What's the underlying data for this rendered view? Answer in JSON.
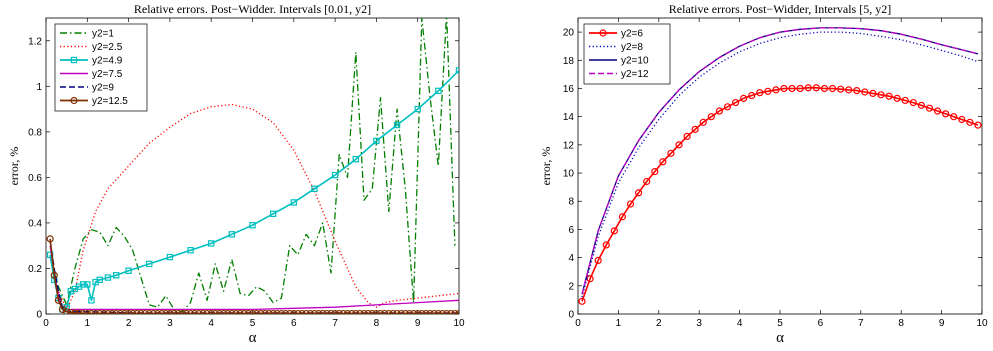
{
  "chart_data": [
    {
      "type": "line",
      "title": "Relative errors. Post−Widder. Intervals [0.01, y2]",
      "xlabel": "α",
      "ylabel": "error, %",
      "xlim": [
        0,
        10
      ],
      "ylim": [
        0,
        1.3
      ],
      "xticks": [
        "0",
        "1",
        "2",
        "3",
        "4",
        "5",
        "6",
        "7",
        "8",
        "9",
        "10"
      ],
      "yticks": [
        "0",
        "0.2",
        "0.4",
        "0.6",
        "0.8",
        "1",
        "1.2"
      ],
      "xtick_values": [
        0,
        1,
        2,
        3,
        4,
        5,
        6,
        7,
        8,
        9,
        10
      ],
      "ytick_values": [
        0,
        0.2,
        0.4,
        0.6,
        0.8,
        1,
        1.2
      ],
      "grid": false,
      "legend_position": "top-left",
      "series": [
        {
          "name": "y2=1",
          "color": "#007f00",
          "dash": "dashdot",
          "marker": "none",
          "x": [
            0.1,
            0.3,
            0.5,
            0.7,
            0.9,
            1.1,
            1.3,
            1.5,
            1.7,
            1.9,
            2.1,
            2.3,
            2.5,
            2.7,
            2.9,
            3.1,
            3.3,
            3.5,
            3.7,
            3.9,
            4.1,
            4.3,
            4.5,
            4.7,
            4.9,
            5.1,
            5.3,
            5.5,
            5.7,
            5.9,
            6.1,
            6.3,
            6.5,
            6.7,
            6.9,
            7.1,
            7.3,
            7.5,
            7.7,
            7.9,
            8.1,
            8.3,
            8.5,
            8.7,
            8.9,
            9.1,
            9.3,
            9.5,
            9.7,
            9.9
          ],
          "y": [
            0.25,
            0.12,
            0.04,
            0.2,
            0.33,
            0.37,
            0.36,
            0.3,
            0.38,
            0.34,
            0.28,
            0.16,
            0.04,
            0.03,
            0.08,
            0.02,
            0.01,
            0.05,
            0.18,
            0.06,
            0.22,
            0.1,
            0.24,
            0.09,
            0.08,
            0.12,
            0.1,
            0.05,
            0.07,
            0.3,
            0.26,
            0.35,
            0.3,
            0.4,
            0.18,
            0.7,
            0.6,
            1.15,
            0.5,
            0.55,
            0.95,
            0.45,
            0.9,
            0.55,
            0.05,
            1.3,
            0.95,
            0.65,
            1.32,
            0.3
          ]
        },
        {
          "name": "y2=2.5",
          "color": "#ff0000",
          "dash": "dotted",
          "marker": "none",
          "x": [
            0.1,
            0.3,
            0.5,
            0.7,
            0.9,
            1.2,
            1.5,
            2,
            2.5,
            3,
            3.5,
            4,
            4.5,
            5,
            5.5,
            6,
            6.5,
            7,
            7.5,
            7.8,
            8,
            8.2,
            8.5,
            9,
            9.5,
            10
          ],
          "y": [
            0.25,
            0.1,
            0.02,
            0.1,
            0.28,
            0.45,
            0.55,
            0.65,
            0.75,
            0.82,
            0.88,
            0.91,
            0.92,
            0.9,
            0.84,
            0.72,
            0.54,
            0.32,
            0.12,
            0.05,
            0.03,
            0.05,
            0.06,
            0.07,
            0.08,
            0.09
          ]
        },
        {
          "name": "y2=4.9",
          "color": "#00bfbf",
          "dash": "solid",
          "marker": "square",
          "x": [
            0.1,
            0.2,
            0.3,
            0.4,
            0.5,
            0.6,
            0.7,
            0.8,
            0.9,
            1,
            1.1,
            1.2,
            1.3,
            1.5,
            1.7,
            2,
            2.5,
            3,
            3.5,
            4,
            4.5,
            5,
            5.5,
            6,
            6.5,
            7,
            7.5,
            8,
            8.5,
            9,
            9.5,
            10
          ],
          "y": [
            0.26,
            0.15,
            0.07,
            0.02,
            0.03,
            0.1,
            0.11,
            0.12,
            0.13,
            0.13,
            0.06,
            0.14,
            0.15,
            0.16,
            0.17,
            0.19,
            0.22,
            0.25,
            0.28,
            0.31,
            0.35,
            0.39,
            0.44,
            0.49,
            0.55,
            0.61,
            0.68,
            0.76,
            0.83,
            0.9,
            0.98,
            1.07
          ]
        },
        {
          "name": "y2=7.5",
          "color": "#bf00bf",
          "dash": "solid",
          "marker": "none",
          "x": [
            0.1,
            0.2,
            0.3,
            0.4,
            0.5,
            0.6,
            1,
            2,
            3,
            4,
            5,
            6,
            7,
            8,
            9,
            10
          ],
          "y": [
            0.3,
            0.18,
            0.08,
            0.02,
            0.01,
            0.02,
            0.02,
            0.02,
            0.02,
            0.02,
            0.02,
            0.025,
            0.03,
            0.04,
            0.05,
            0.06
          ]
        },
        {
          "name": "y2=9",
          "color": "#00007f",
          "dash": "dashed",
          "marker": "none",
          "x": [
            0.1,
            0.2,
            0.3,
            0.4,
            0.5,
            0.6,
            1,
            2,
            3,
            4,
            5,
            6,
            7,
            8,
            9,
            10
          ],
          "y": [
            0.32,
            0.2,
            0.1,
            0.03,
            0.01,
            0.01,
            0.01,
            0.005,
            0.005,
            0.005,
            0.005,
            0.005,
            0.005,
            0.005,
            0.005,
            0.005
          ]
        },
        {
          "name": "y2=12.5",
          "color": "#7f2f00",
          "dash": "solid",
          "marker": "circle",
          "x": [
            0.1,
            0.2,
            0.3,
            0.4,
            0.5,
            0.6,
            0.7,
            0.8,
            0.9,
            1,
            1.1,
            1.2,
            1.3,
            1.4,
            1.5,
            1.6,
            1.7,
            1.8,
            1.9,
            2,
            2.1,
            2.2,
            2.3,
            2.4,
            2.5,
            2.6,
            2.7,
            2.8,
            2.9,
            3,
            3.1,
            3.2,
            3.3,
            3.4,
            3.5,
            3.6,
            3.7,
            3.8,
            3.9,
            4,
            4.1,
            4.2,
            4.3,
            4.4,
            4.5,
            4.6,
            4.7,
            4.8,
            4.9,
            5,
            5.1,
            5.2,
            5.3,
            5.4,
            5.5,
            5.6,
            5.7,
            5.8,
            5.9,
            6,
            6.1,
            6.2,
            6.3,
            6.4,
            6.5,
            6.6,
            6.7,
            6.8,
            6.9,
            7,
            7.1,
            7.2,
            7.3,
            7.4,
            7.5,
            7.6,
            7.7,
            7.8,
            7.9,
            8,
            8.1,
            8.2,
            8.3,
            8.4,
            8.5,
            8.6,
            8.7,
            8.8,
            8.9,
            9,
            9.1,
            9.2,
            9.3,
            9.4,
            9.5,
            9.6,
            9.7,
            9.8,
            9.9,
            10
          ],
          "y": [
            0.33,
            0.17,
            0.06,
            0.02,
            0.01,
            0.006,
            0.004,
            0.003,
            0.002,
            0.002,
            0.002,
            0.002,
            0.002,
            0.002,
            0.002,
            0.002,
            0.002,
            0.002,
            0.002,
            0.002,
            0.002,
            0.002,
            0.002,
            0.002,
            0.002,
            0.002,
            0.002,
            0.002,
            0.002,
            0.002,
            0.002,
            0.002,
            0.002,
            0.002,
            0.002,
            0.002,
            0.002,
            0.002,
            0.002,
            0.002,
            0.002,
            0.002,
            0.002,
            0.002,
            0.002,
            0.002,
            0.002,
            0.002,
            0.002,
            0.002,
            0.002,
            0.002,
            0.002,
            0.002,
            0.002,
            0.002,
            0.002,
            0.002,
            0.002,
            0.002,
            0.002,
            0.002,
            0.002,
            0.002,
            0.002,
            0.002,
            0.002,
            0.002,
            0.002,
            0.002,
            0.002,
            0.002,
            0.002,
            0.002,
            0.002,
            0.002,
            0.002,
            0.002,
            0.002,
            0.002,
            0.002,
            0.002,
            0.002,
            0.002,
            0.002,
            0.002,
            0.002,
            0.002,
            0.002,
            0.002,
            0.002,
            0.002,
            0.002,
            0.002,
            0.002,
            0.002,
            0.002,
            0.002,
            0.002,
            0.002
          ]
        }
      ]
    },
    {
      "type": "line",
      "title": "Relative errors. Post−Widder, Intervals [5, y2]",
      "xlabel": "α",
      "ylabel": "error, %",
      "xlim": [
        0,
        10
      ],
      "ylim": [
        0,
        21
      ],
      "xticks": [
        "0",
        "1",
        "2",
        "3",
        "4",
        "5",
        "6",
        "7",
        "8",
        "9",
        "10"
      ],
      "yticks": [
        "0",
        "2",
        "4",
        "6",
        "8",
        "10",
        "12",
        "14",
        "16",
        "18",
        "20"
      ],
      "xtick_values": [
        0,
        1,
        2,
        3,
        4,
        5,
        6,
        7,
        8,
        9,
        10
      ],
      "ytick_values": [
        0,
        2,
        4,
        6,
        8,
        10,
        12,
        14,
        16,
        18,
        20
      ],
      "grid": false,
      "legend_position": "top-left",
      "series": [
        {
          "name": "y2=6",
          "color": "#ff0000",
          "dash": "solid",
          "marker": "circle",
          "x": [
            0.1,
            0.3,
            0.5,
            0.7,
            0.9,
            1.1,
            1.3,
            1.5,
            1.7,
            1.9,
            2.1,
            2.3,
            2.5,
            2.7,
            2.9,
            3.1,
            3.3,
            3.5,
            3.7,
            3.9,
            4.1,
            4.3,
            4.5,
            4.7,
            4.9,
            5.1,
            5.3,
            5.5,
            5.7,
            5.9,
            6.1,
            6.3,
            6.5,
            6.7,
            6.9,
            7.1,
            7.3,
            7.5,
            7.7,
            7.9,
            8.1,
            8.3,
            8.5,
            8.7,
            8.9,
            9.1,
            9.3,
            9.5,
            9.7,
            9.9
          ],
          "y": [
            0.9,
            2.5,
            3.8,
            4.9,
            5.9,
            6.9,
            7.8,
            8.6,
            9.4,
            10.1,
            10.8,
            11.4,
            12.0,
            12.6,
            13.1,
            13.6,
            14.0,
            14.4,
            14.7,
            15.0,
            15.3,
            15.5,
            15.7,
            15.8,
            15.9,
            16.0,
            16.0,
            16.0,
            16.05,
            16.05,
            16.0,
            16.0,
            15.95,
            15.9,
            15.85,
            15.75,
            15.65,
            15.55,
            15.45,
            15.3,
            15.15,
            15.0,
            14.8,
            14.6,
            14.4,
            14.2,
            14.0,
            13.8,
            13.6,
            13.4
          ]
        },
        {
          "name": "y2=8",
          "color": "#0000bf",
          "dash": "dotted",
          "marker": "none",
          "x": [
            0.1,
            0.5,
            1,
            1.5,
            2,
            2.5,
            3,
            3.5,
            4,
            4.5,
            5,
            5.5,
            6,
            6.5,
            7,
            7.5,
            8,
            8.5,
            9,
            9.5,
            9.9
          ],
          "y": [
            1.2,
            5.5,
            9.3,
            11.8,
            13.8,
            15.5,
            16.8,
            17.8,
            18.6,
            19.2,
            19.6,
            19.85,
            20.0,
            20.0,
            19.9,
            19.7,
            19.45,
            19.1,
            18.7,
            18.3,
            17.9
          ]
        },
        {
          "name": "y2=10",
          "color": "#00007f",
          "dash": "solid",
          "marker": "none",
          "x": [
            0.1,
            0.5,
            1,
            1.5,
            2,
            2.5,
            3,
            3.5,
            4,
            4.5,
            5,
            5.5,
            6,
            6.5,
            7,
            7.5,
            8,
            8.5,
            9,
            9.5,
            9.9
          ],
          "y": [
            1.4,
            5.9,
            9.8,
            12.3,
            14.3,
            15.9,
            17.2,
            18.2,
            19.0,
            19.6,
            20.0,
            20.2,
            20.3,
            20.3,
            20.25,
            20.1,
            19.85,
            19.5,
            19.1,
            18.75,
            18.45
          ]
        },
        {
          "name": "y2=12",
          "color": "#bf00bf",
          "dash": "dashed",
          "marker": "none",
          "x": [
            0.1,
            0.5,
            1,
            1.5,
            2,
            2.5,
            3,
            3.5,
            4,
            4.5,
            5,
            5.5,
            6,
            6.5,
            7,
            7.5,
            8,
            8.5,
            9,
            9.5,
            9.9
          ],
          "y": [
            1.4,
            5.9,
            9.8,
            12.3,
            14.3,
            15.9,
            17.2,
            18.2,
            19.0,
            19.6,
            20.0,
            20.2,
            20.3,
            20.3,
            20.25,
            20.1,
            19.85,
            19.5,
            19.1,
            18.75,
            18.45
          ]
        }
      ]
    }
  ]
}
